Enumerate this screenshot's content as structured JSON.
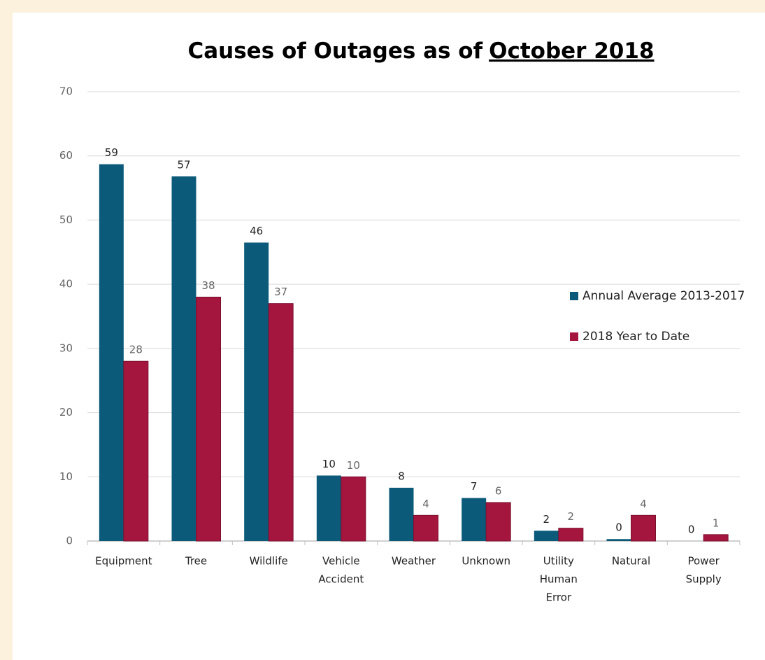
{
  "chart_data": {
    "type": "bar",
    "title": [
      "Causes of Outages as of",
      "October 2018"
    ],
    "categories": [
      [
        "Equipment"
      ],
      [
        "Tree"
      ],
      [
        "Wildlife"
      ],
      [
        "Vehicle",
        "Accident"
      ],
      [
        "Weather"
      ],
      [
        "Unknown"
      ],
      [
        "Utility",
        "Human",
        "Error"
      ],
      [
        "Natural"
      ],
      [
        "Power",
        "Supply"
      ]
    ],
    "series": [
      {
        "name": "Annual Average 2013-2017",
        "color": "#0b5a7a",
        "values": [
          58.7,
          56.8,
          46.5,
          10.2,
          8.3,
          6.7,
          1.6,
          0.3,
          0
        ],
        "value_labels": [
          "59",
          "57",
          "46",
          "10",
          "8",
          "7",
          "2",
          "0",
          "0"
        ]
      },
      {
        "name": "2018 Year to Date",
        "color": "#a5163f",
        "values": [
          28,
          38,
          37,
          10,
          4,
          6,
          2,
          4,
          1
        ]
      }
    ],
    "ylim": [
      0,
      70
    ],
    "yticks": [
      0,
      10,
      20,
      30,
      40,
      50,
      60,
      70
    ],
    "grid": true,
    "legend": "right"
  }
}
